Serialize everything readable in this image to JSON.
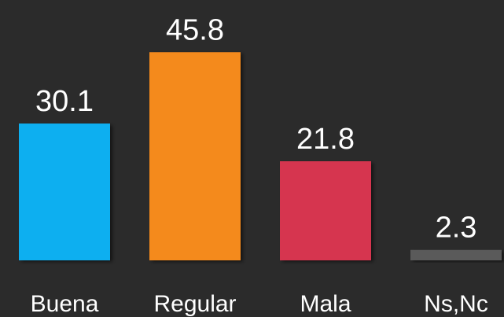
{
  "chart_data": {
    "type": "bar",
    "categories": [
      "Buena",
      "Regular",
      "Mala",
      "Ns,Nc"
    ],
    "values": [
      30.1,
      45.8,
      21.8,
      2.3
    ],
    "colors": [
      "#0aaff0",
      "#f48a1f",
      "#d6354f",
      "#5a5a5a"
    ]
  }
}
